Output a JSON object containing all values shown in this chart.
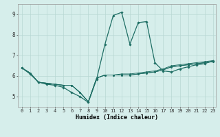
{
  "xlabel": "Humidex (Indice chaleur)",
  "ylabel": "",
  "xlim": [
    -0.5,
    23.3
  ],
  "ylim": [
    4.5,
    9.5
  ],
  "xticks": [
    0,
    1,
    2,
    3,
    4,
    5,
    6,
    7,
    8,
    9,
    10,
    11,
    12,
    13,
    14,
    15,
    16,
    17,
    18,
    19,
    20,
    21,
    22,
    23
  ],
  "yticks": [
    5,
    6,
    7,
    8,
    9
  ],
  "bg_color": "#d6eeeb",
  "grid_color": "#b8d8d4",
  "line_color": "#1e6e64",
  "series": [
    [
      6.4,
      6.15,
      5.7,
      5.65,
      5.6,
      5.55,
      5.55,
      5.2,
      4.75,
      5.9,
      6.05,
      6.05,
      6.05,
      6.05,
      6.1,
      6.15,
      6.2,
      6.3,
      6.45,
      6.5,
      6.55,
      6.6,
      6.65,
      6.7
    ],
    [
      6.4,
      6.15,
      5.7,
      5.65,
      5.6,
      5.55,
      5.55,
      5.2,
      4.75,
      5.9,
      6.05,
      6.05,
      6.05,
      6.05,
      6.1,
      6.15,
      6.2,
      6.3,
      6.45,
      6.5,
      6.55,
      6.6,
      6.65,
      6.7
    ],
    [
      6.4,
      6.15,
      5.7,
      5.65,
      5.6,
      5.55,
      5.55,
      5.2,
      4.75,
      5.9,
      6.05,
      6.05,
      6.1,
      6.1,
      6.15,
      6.2,
      6.25,
      6.35,
      6.5,
      6.55,
      6.6,
      6.65,
      6.7,
      6.75
    ],
    [
      6.4,
      6.1,
      5.7,
      5.6,
      5.55,
      5.45,
      5.2,
      5.0,
      4.72,
      5.85,
      7.55,
      8.95,
      9.1,
      7.55,
      8.6,
      8.65,
      6.65,
      6.25,
      6.2,
      6.35,
      6.45,
      6.55,
      6.6,
      6.75
    ]
  ],
  "tick_fontsize": 5.0,
  "xlabel_fontsize": 6.0
}
